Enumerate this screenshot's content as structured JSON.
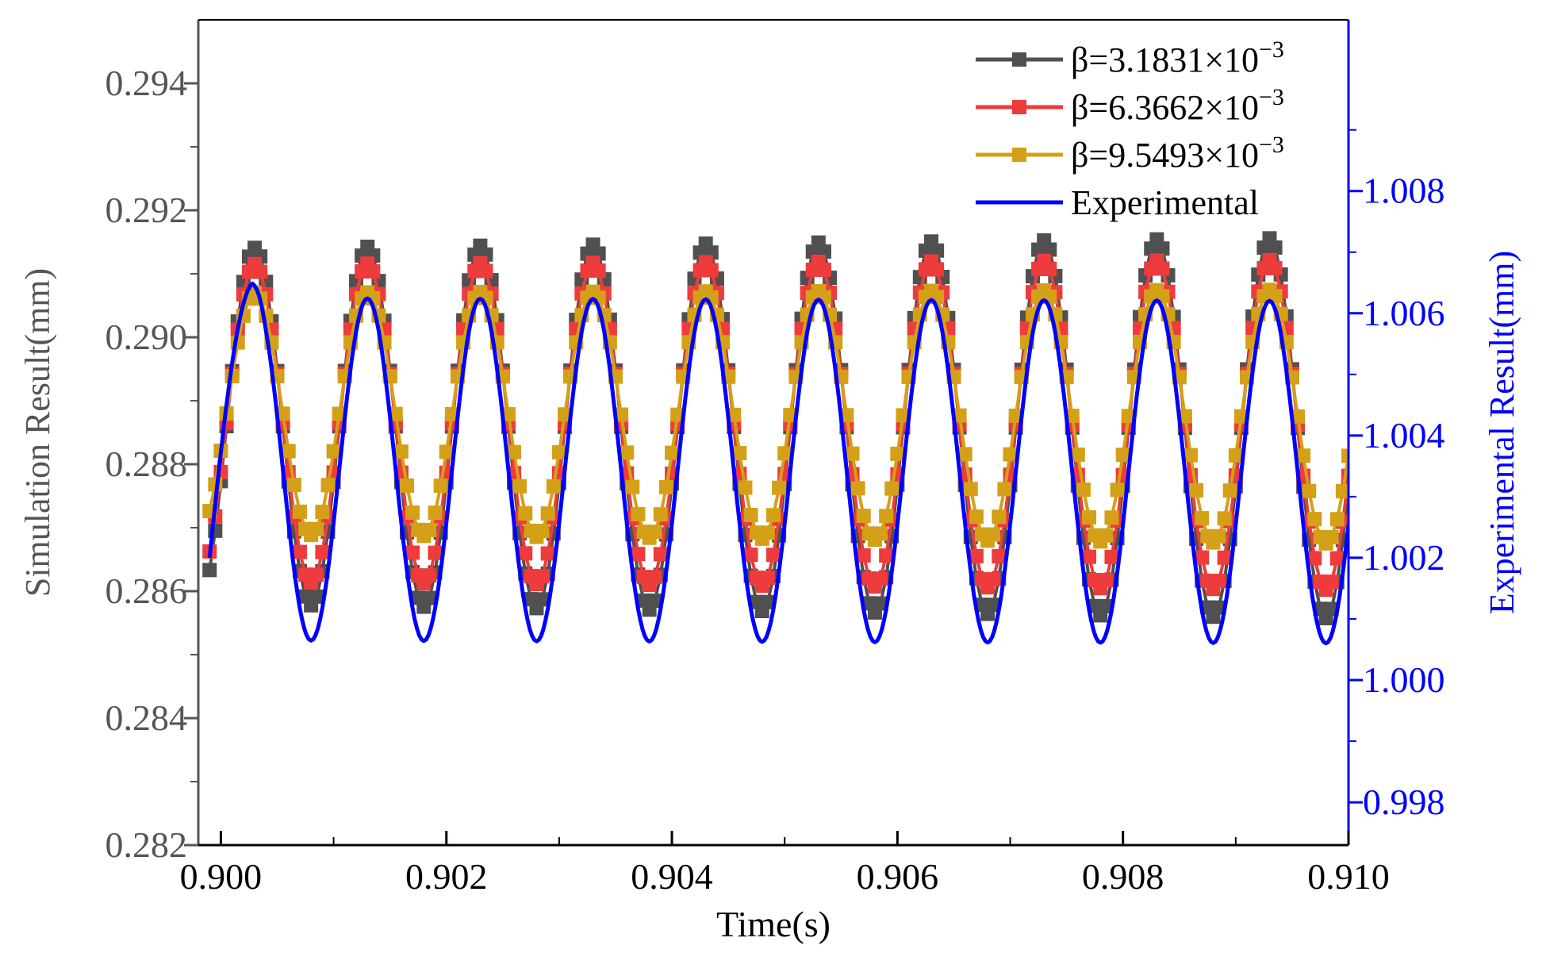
{
  "chart_data": {
    "type": "line",
    "xlabel": "Time(s)",
    "ylabel_left": "Simulation Result(mm)",
    "ylabel_right": "Experimental Result(mm)",
    "xlim": [
      0.8998,
      0.91
    ],
    "ylim_left": [
      0.282,
      0.295
    ],
    "ylim_right": [
      0.9973,
      1.0108
    ],
    "x_ticks": [
      0.9,
      0.902,
      0.904,
      0.906,
      0.908,
      0.91
    ],
    "x_tick_labels": [
      "0.900",
      "0.902",
      "0.904",
      "0.906",
      "0.908",
      "0.910"
    ],
    "y_left_ticks": [
      0.282,
      0.284,
      0.286,
      0.288,
      0.29,
      0.292,
      0.294
    ],
    "y_left_tick_labels": [
      "0.282",
      "0.284",
      "0.286",
      "0.288",
      "0.290",
      "0.292",
      "0.294"
    ],
    "y_right_ticks": [
      0.998,
      1.0,
      1.002,
      1.004,
      1.006,
      1.008
    ],
    "y_right_tick_labels": [
      "0.998",
      "1.000",
      "1.002",
      "1.004",
      "1.006",
      "1.008"
    ],
    "legend": {
      "position": "top-right",
      "entries": [
        {
          "prefix": "β=3.1831×10",
          "exp": "−3",
          "series": 0
        },
        {
          "prefix": "β=6.3662×10",
          "exp": "−3",
          "series": 1
        },
        {
          "prefix": "β=9.5493×10",
          "exp": "−3",
          "series": 2
        },
        {
          "prefix": "Experimental",
          "exp": "",
          "series": 3
        }
      ]
    },
    "series": [
      {
        "name": "β=3.1831×10⁻³",
        "axis": "left",
        "color": "#505050",
        "marker": "square",
        "waveform": {
          "period": 0.001,
          "peak_time": 0.9003,
          "mean": 0.2886,
          "amp_start": 0.0028,
          "amp_end": 0.003,
          "mean_drift": -3e-05
        }
      },
      {
        "name": "β=6.3662×10⁻³",
        "axis": "left",
        "color": "#ee3b3b",
        "marker": "square",
        "waveform": {
          "period": 0.001,
          "peak_time": 0.9003,
          "mean": 0.28865,
          "amp_start": 0.0025,
          "amp_end": 0.0026,
          "mean_drift": -3e-05
        }
      },
      {
        "name": "β=9.5493×10⁻³",
        "axis": "left",
        "color": "#d4a017",
        "marker": "square",
        "waveform": {
          "period": 0.001,
          "peak_time": 0.9003,
          "mean": 0.2888,
          "amp_start": 0.0019,
          "amp_end": 0.002,
          "mean_drift": -5e-05
        }
      },
      {
        "name": "Experimental",
        "axis": "right",
        "color": "#0000ff",
        "marker": "none",
        "waveform": {
          "period": 0.001,
          "peak_time": 0.9003,
          "mean": 1.00345,
          "amp_start": 0.0028,
          "amp_end": 0.0028,
          "mean_drift": -5e-05
        },
        "sample_points": [
          {
            "x": 0.8999,
            "y": 1.002
          },
          {
            "x": 0.9003,
            "y": 1.0065
          },
          {
            "x": 0.9008,
            "y": 1.001
          },
          {
            "x": 0.9013,
            "y": 1.0063
          },
          {
            "x": 0.9018,
            "y": 1.0007
          },
          {
            "x": 0.9023,
            "y": 1.0063
          },
          {
            "x": 0.9028,
            "y": 1.0007
          },
          {
            "x": 0.9033,
            "y": 1.0062
          },
          {
            "x": 0.9038,
            "y": 1.0007
          },
          {
            "x": 0.9043,
            "y": 1.0062
          },
          {
            "x": 0.9048,
            "y": 1.0006
          },
          {
            "x": 0.9053,
            "y": 1.0062
          },
          {
            "x": 0.9058,
            "y": 1.0008
          },
          {
            "x": 0.9063,
            "y": 1.0062
          },
          {
            "x": 0.9068,
            "y": 1.0008
          },
          {
            "x": 0.9073,
            "y": 1.0062
          },
          {
            "x": 0.9078,
            "y": 1.0006
          },
          {
            "x": 0.9083,
            "y": 1.0062
          },
          {
            "x": 0.9088,
            "y": 1.0006
          },
          {
            "x": 0.9093,
            "y": 1.0062
          },
          {
            "x": 0.9098,
            "y": 1.0005
          },
          {
            "x": 0.91,
            "y": 1.003
          }
        ]
      }
    ],
    "colors": {
      "left_axis": "#555555",
      "right_axis": "#0000ff",
      "x_axis": "#000000"
    }
  }
}
